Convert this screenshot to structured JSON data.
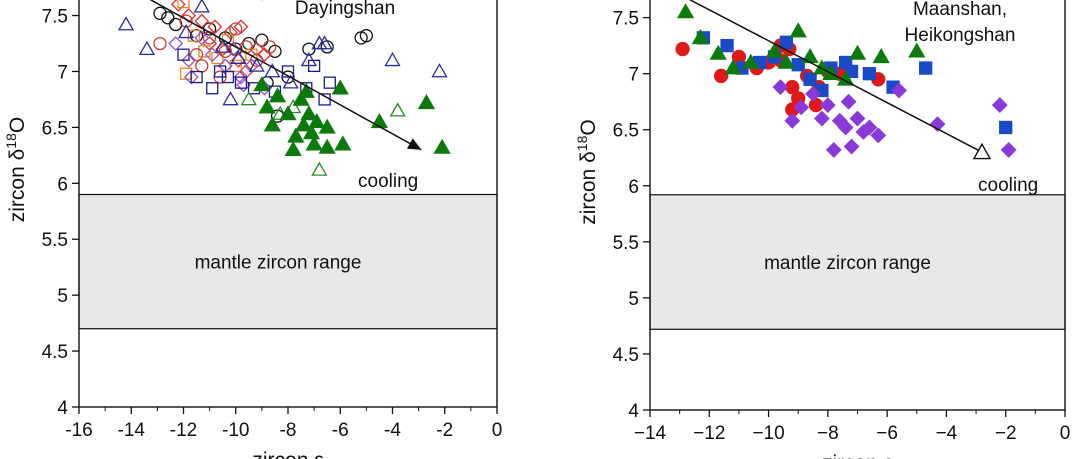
{
  "chart_data": [
    {
      "type": "scatter",
      "panel": "left",
      "location_label": "Dayingshan",
      "xlabel_main": "zircon ε",
      "ylabel_main": "zircon δ",
      "ylabel_sup": "18",
      "ylabel_tail": "O",
      "xlim": [
        -16,
        0
      ],
      "ylim": [
        4,
        7.8
      ],
      "xticks": [
        -16,
        -14,
        -12,
        -10,
        -8,
        -6,
        -4,
        -2,
        0
      ],
      "xtick_labels": [
        "-16",
        "-14",
        "-12",
        "-10",
        "-8",
        "-6",
        "-4",
        "-2",
        "0"
      ],
      "yticks": [
        4,
        4.5,
        5,
        5.5,
        6,
        6.5,
        7,
        7.5
      ],
      "ytick_labels": [
        "4",
        "4.5",
        "5",
        "5.5",
        "6",
        "6.5",
        "7",
        "7.5"
      ],
      "mantle_band": [
        4.7,
        5.9
      ],
      "mantle_label": "mantle zircon range",
      "trend": {
        "x1": -14.1,
        "y1": 7.75,
        "x2": -2.9,
        "y2": 6.3,
        "end": "arrow"
      },
      "trend_label": "cooling",
      "series": [
        {
          "marker": "circle-open",
          "color": "#111111",
          "points": [
            [
              -12.9,
              7.52
            ],
            [
              -12.6,
              7.48
            ],
            [
              -12.3,
              7.42
            ],
            [
              -11.5,
              7.32
            ],
            [
              -11.0,
              7.38
            ],
            [
              -10.4,
              7.3
            ],
            [
              -10.0,
              7.2
            ],
            [
              -9.5,
              7.25
            ],
            [
              -9.0,
              7.28
            ],
            [
              -8.5,
              7.18
            ],
            [
              -7.2,
              7.2
            ],
            [
              -6.5,
              7.22
            ],
            [
              -5.2,
              7.3
            ],
            [
              -5.0,
              7.32
            ],
            [
              -8.0,
              6.95
            ],
            [
              -8.4,
              6.6
            ],
            [
              -8.8,
              6.9
            ]
          ]
        },
        {
          "marker": "diamond-open",
          "color": "#e03030",
          "points": [
            [
              -12.5,
              7.78
            ],
            [
              -12.2,
              7.6
            ],
            [
              -11.8,
              7.5
            ],
            [
              -11.3,
              7.45
            ],
            [
              -10.8,
              7.4
            ],
            [
              -10.2,
              7.35
            ],
            [
              -9.9,
              7.1
            ],
            [
              -9.6,
              7.0
            ],
            [
              -9.2,
              7.2
            ],
            [
              -8.9,
              7.15
            ],
            [
              -9.8,
              7.4
            ],
            [
              -11.0,
              7.25
            ],
            [
              -9.0,
              7.7
            ],
            [
              -10.5,
              7.2
            ]
          ]
        },
        {
          "marker": "square-open",
          "color": "#e08a20",
          "points": [
            [
              -12.0,
              7.62
            ],
            [
              -11.6,
              7.32
            ],
            [
              -11.2,
              7.18
            ],
            [
              -10.7,
              7.12
            ],
            [
              -10.0,
              7.05
            ],
            [
              -9.4,
              7.15
            ],
            [
              -11.9,
              6.98
            ],
            [
              -10.3,
              7.28
            ]
          ]
        },
        {
          "marker": "circle-open",
          "color": "#d03a3a",
          "points": [
            [
              -12.9,
              7.25
            ],
            [
              -11.9,
              7.45
            ],
            [
              -11.5,
              7.15
            ],
            [
              -11.0,
              7.3
            ],
            [
              -10.4,
              7.18
            ],
            [
              -10.0,
              7.38
            ],
            [
              -9.6,
              7.22
            ],
            [
              -9.2,
              7.1
            ],
            [
              -8.7,
              7.22
            ],
            [
              -11.3,
              7.05
            ],
            [
              -10.6,
              6.95
            ]
          ]
        },
        {
          "marker": "diamond-open",
          "color": "#9a4fc8",
          "points": [
            [
              -12.3,
              7.25
            ],
            [
              -11.8,
              7.1
            ],
            [
              -11.3,
              7.3
            ],
            [
              -10.9,
              7.15
            ],
            [
              -10.4,
              7.05
            ],
            [
              -9.8,
              6.95
            ],
            [
              -9.4,
              7.05
            ],
            [
              -8.9,
              6.85
            ],
            [
              -9.7,
              6.88
            ],
            [
              -10.1,
              7.2
            ],
            [
              -11.7,
              6.95
            ]
          ]
        },
        {
          "marker": "square-open",
          "color": "#1a1a8c",
          "points": [
            [
              -12.0,
              7.15
            ],
            [
              -11.5,
              6.95
            ],
            [
              -10.9,
              6.85
            ],
            [
              -10.3,
              6.95
            ],
            [
              -9.8,
              6.9
            ],
            [
              -9.3,
              6.85
            ],
            [
              -8.5,
              6.82
            ],
            [
              -8.0,
              7.0
            ],
            [
              -7.3,
              6.85
            ],
            [
              -7.0,
              7.05
            ],
            [
              -6.6,
              6.75
            ],
            [
              -6.4,
              6.9
            ],
            [
              -10.6,
              7.0
            ]
          ]
        },
        {
          "marker": "triangle-open",
          "color": "#2a2a9a",
          "points": [
            [
              -14.2,
              7.42
            ],
            [
              -13.4,
              7.2
            ],
            [
              -11.9,
              7.35
            ],
            [
              -11.3,
              7.58
            ],
            [
              -10.5,
              7.22
            ],
            [
              -9.9,
              7.12
            ],
            [
              -9.2,
              7.05
            ],
            [
              -8.6,
              7.0
            ],
            [
              -7.9,
              6.9
            ],
            [
              -7.2,
              7.1
            ],
            [
              -6.8,
              7.25
            ],
            [
              -6.6,
              7.25
            ],
            [
              -2.2,
              7.0
            ],
            [
              -4.0,
              7.1
            ],
            [
              -10.2,
              6.75
            ]
          ]
        },
        {
          "marker": "triangle-open",
          "color": "#2a8a2a",
          "points": [
            [
              -9.5,
              6.75
            ],
            [
              -8.3,
              6.62
            ],
            [
              -7.8,
              6.68
            ],
            [
              -6.8,
              6.12
            ],
            [
              -3.8,
              6.65
            ]
          ]
        },
        {
          "marker": "triangle-filled",
          "color": "#0a7a0a",
          "points": [
            [
              -9.0,
              6.88
            ],
            [
              -8.8,
              6.68
            ],
            [
              -8.4,
              6.78
            ],
            [
              -8.0,
              6.62
            ],
            [
              -7.5,
              6.75
            ],
            [
              -7.3,
              6.82
            ],
            [
              -7.7,
              6.42
            ],
            [
              -7.8,
              6.3
            ],
            [
              -7.0,
              6.35
            ],
            [
              -7.1,
              6.45
            ],
            [
              -6.9,
              6.55
            ],
            [
              -6.5,
              6.5
            ],
            [
              -7.4,
              6.52
            ],
            [
              -6.5,
              6.32
            ],
            [
              -6.0,
              6.85
            ],
            [
              -5.9,
              6.35
            ],
            [
              -4.5,
              6.55
            ],
            [
              -2.7,
              6.72
            ],
            [
              -2.1,
              6.32
            ],
            [
              -8.6,
              6.52
            ],
            [
              -7.2,
              6.62
            ]
          ]
        }
      ]
    },
    {
      "type": "scatter",
      "panel": "right",
      "location_label_lines": [
        "Maanshan,",
        "Heikongshan"
      ],
      "xlabel_main": "zircon ε",
      "ylabel_main": "zircon δ",
      "ylabel_sup": "18",
      "ylabel_tail": "O",
      "xlim": [
        -14,
        0
      ],
      "ylim": [
        4,
        7.8
      ],
      "xticks": [
        -14,
        -12,
        -10,
        -8,
        -6,
        -4,
        -2,
        0
      ],
      "xtick_labels": [
        "−14",
        "−12",
        "−10",
        "−8",
        "−6",
        "−4",
        "−2",
        "0"
      ],
      "yticks": [
        4,
        4.5,
        5,
        5.5,
        6,
        6.5,
        7,
        7.5
      ],
      "ytick_labels": [
        "4",
        "4.5",
        "5",
        "5.5",
        "6",
        "6.5",
        "7",
        "7.5"
      ],
      "mantle_band": [
        4.72,
        5.92
      ],
      "mantle_label": "mantle zircon range",
      "trend": {
        "x1": -12.8,
        "y1": 7.68,
        "x2": -2.8,
        "y2": 6.3,
        "end": "open-triangle"
      },
      "trend_label": "cooling",
      "series": [
        {
          "marker": "circle-filled",
          "color": "#e01818",
          "points": [
            [
              -12.9,
              7.22
            ],
            [
              -11.6,
              6.98
            ],
            [
              -11.0,
              7.15
            ],
            [
              -10.4,
              7.05
            ],
            [
              -10.0,
              7.1
            ],
            [
              -9.6,
              7.12
            ],
            [
              -9.3,
              7.22
            ],
            [
              -9.2,
              6.88
            ],
            [
              -9.0,
              6.78
            ],
            [
              -9.2,
              6.68
            ],
            [
              -8.7,
              6.98
            ],
            [
              -8.4,
              6.72
            ],
            [
              -8.0,
              7.02
            ],
            [
              -8.3,
              6.88
            ],
            [
              -7.6,
              7.0
            ],
            [
              -6.3,
              6.95
            ],
            [
              -9.6,
              7.25
            ]
          ]
        },
        {
          "marker": "square-filled",
          "color": "#1a4ac8",
          "points": [
            [
              -12.2,
              7.32
            ],
            [
              -11.4,
              7.25
            ],
            [
              -10.9,
              7.05
            ],
            [
              -10.3,
              7.1
            ],
            [
              -9.8,
              7.15
            ],
            [
              -9.4,
              7.28
            ],
            [
              -9.0,
              7.08
            ],
            [
              -8.6,
              6.95
            ],
            [
              -8.2,
              6.85
            ],
            [
              -7.4,
              7.1
            ],
            [
              -7.2,
              7.02
            ],
            [
              -6.6,
              7.0
            ],
            [
              -5.8,
              6.88
            ],
            [
              -4.7,
              7.05
            ],
            [
              -2.0,
              6.52
            ],
            [
              -7.9,
              7.05
            ]
          ]
        },
        {
          "marker": "diamond-filled",
          "color": "#8a38d8",
          "points": [
            [
              -9.6,
              6.88
            ],
            [
              -9.2,
              6.58
            ],
            [
              -8.9,
              6.7
            ],
            [
              -8.5,
              6.82
            ],
            [
              -8.2,
              6.6
            ],
            [
              -8.0,
              6.72
            ],
            [
              -7.8,
              6.32
            ],
            [
              -7.6,
              6.58
            ],
            [
              -7.4,
              6.52
            ],
            [
              -7.2,
              6.35
            ],
            [
              -7.0,
              6.6
            ],
            [
              -6.8,
              6.48
            ],
            [
              -6.6,
              6.52
            ],
            [
              -6.3,
              6.45
            ],
            [
              -5.6,
              6.85
            ],
            [
              -4.3,
              6.55
            ],
            [
              -2.2,
              6.72
            ],
            [
              -1.9,
              6.32
            ],
            [
              -7.3,
              6.75
            ]
          ]
        },
        {
          "marker": "triangle-filled",
          "color": "#0a7a0a",
          "points": [
            [
              -12.8,
              7.55
            ],
            [
              -12.3,
              7.32
            ],
            [
              -11.7,
              7.18
            ],
            [
              -11.2,
              7.05
            ],
            [
              -10.6,
              7.1
            ],
            [
              -9.8,
              7.2
            ],
            [
              -9.4,
              7.1
            ],
            [
              -9.0,
              7.38
            ],
            [
              -8.6,
              7.15
            ],
            [
              -8.2,
              7.05
            ],
            [
              -7.9,
              7.0
            ],
            [
              -7.4,
              6.95
            ],
            [
              -7.0,
              7.18
            ],
            [
              -6.2,
              7.15
            ],
            [
              -5.0,
              7.2
            ]
          ]
        }
      ]
    }
  ]
}
